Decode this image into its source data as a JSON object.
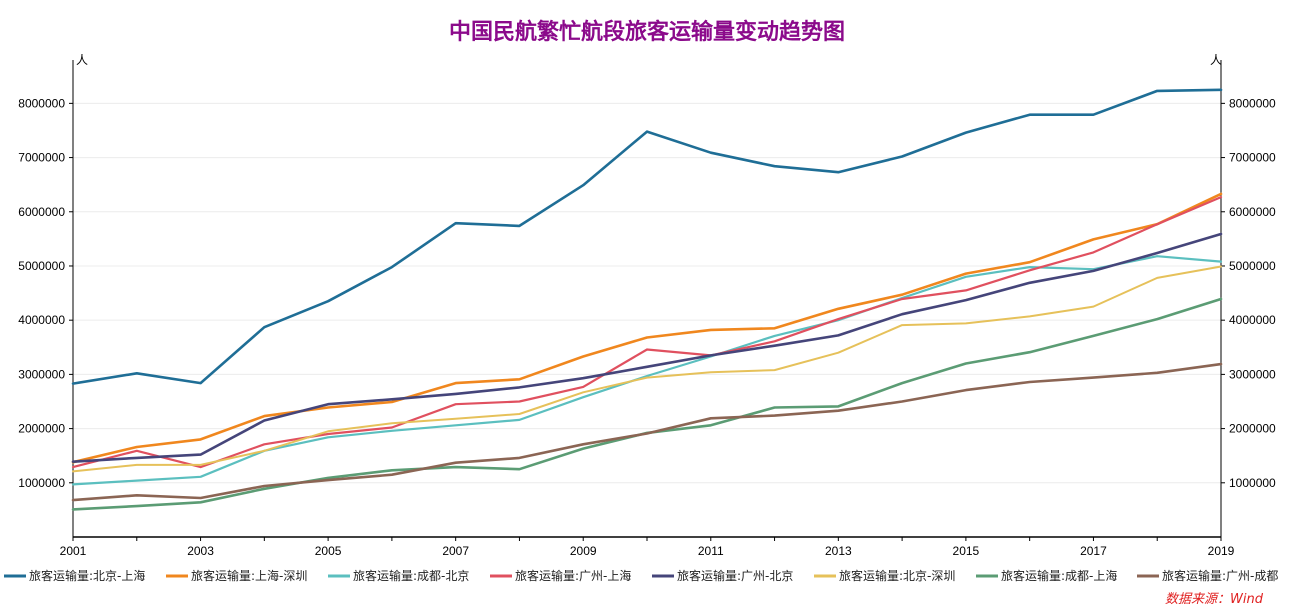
{
  "chart_data": {
    "type": "line",
    "title": "中国民航繁忙航段旅客运输量变动趋势图",
    "title_color": "#8b0a8b",
    "y_unit_left": "人",
    "y_unit_right": "人",
    "x": [
      2001,
      2002,
      2003,
      2004,
      2005,
      2006,
      2007,
      2008,
      2009,
      2010,
      2011,
      2012,
      2013,
      2014,
      2015,
      2016,
      2017,
      2018,
      2019
    ],
    "x_tick_labels": [
      "2001",
      "2003",
      "2005",
      "2007",
      "2009",
      "2011",
      "2013",
      "2015",
      "2017",
      "2019"
    ],
    "ylim": [
      0,
      8800000
    ],
    "y_ticks": [
      "1000000",
      "2000000",
      "3000000",
      "4000000",
      "5000000",
      "6000000",
      "7000000",
      "8000000"
    ],
    "grid": true,
    "legend_position": "bottom",
    "series": [
      {
        "name": "旅客运输量:北京-上海",
        "color": "#1f6e96",
        "width": 2.6,
        "values": [
          2830000,
          3020000,
          2840000,
          3870000,
          4350000,
          4980000,
          5790000,
          5740000,
          6490000,
          7480000,
          7090000,
          6840000,
          6730000,
          7020000,
          7460000,
          7790000,
          7790000,
          8230000,
          8250000
        ]
      },
      {
        "name": "旅客运输量:上海-深圳",
        "color": "#f0871e",
        "width": 2.6,
        "values": [
          1380000,
          1660000,
          1800000,
          2230000,
          2390000,
          2490000,
          2840000,
          2910000,
          3330000,
          3680000,
          3820000,
          3850000,
          4210000,
          4470000,
          4860000,
          5070000,
          5490000,
          5770000,
          6330000
        ]
      },
      {
        "name": "旅客运输量:成都-北京",
        "color": "#5bbfbf",
        "width": 2.2,
        "values": [
          970000,
          1040000,
          1110000,
          1590000,
          1840000,
          1960000,
          2060000,
          2160000,
          2580000,
          2970000,
          3330000,
          3710000,
          4000000,
          4410000,
          4800000,
          4980000,
          4940000,
          5180000,
          5080000
        ]
      },
      {
        "name": "旅客运输量:广州-上海",
        "color": "#e0505f",
        "width": 2.2,
        "values": [
          1290000,
          1590000,
          1290000,
          1710000,
          1900000,
          2020000,
          2450000,
          2500000,
          2770000,
          3460000,
          3350000,
          3610000,
          4020000,
          4390000,
          4550000,
          4920000,
          5250000,
          5770000,
          6270000
        ]
      },
      {
        "name": "旅客运输量:广州-北京",
        "color": "#45457a",
        "width": 2.6,
        "values": [
          1390000,
          1460000,
          1520000,
          2150000,
          2450000,
          2540000,
          2640000,
          2760000,
          2930000,
          3140000,
          3350000,
          3530000,
          3720000,
          4110000,
          4370000,
          4690000,
          4910000,
          5240000,
          5590000
        ]
      },
      {
        "name": "旅客运输量:北京-深圳",
        "color": "#e6c15a",
        "width": 2.0,
        "values": [
          1210000,
          1330000,
          1330000,
          1590000,
          1950000,
          2100000,
          2180000,
          2270000,
          2670000,
          2940000,
          3040000,
          3080000,
          3400000,
          3910000,
          3940000,
          4070000,
          4250000,
          4780000,
          4990000
        ]
      },
      {
        "name": "旅客运输量:成都-上海",
        "color": "#5b9c74",
        "width": 2.6,
        "values": [
          510000,
          570000,
          640000,
          890000,
          1090000,
          1230000,
          1290000,
          1250000,
          1630000,
          1920000,
          2060000,
          2390000,
          2410000,
          2840000,
          3200000,
          3410000,
          3710000,
          4020000,
          4390000
        ]
      },
      {
        "name": "旅客运输量:广州-成都",
        "color": "#8b6554",
        "width": 2.6,
        "values": [
          680000,
          770000,
          720000,
          940000,
          1050000,
          1150000,
          1370000,
          1460000,
          1710000,
          1910000,
          2190000,
          2240000,
          2330000,
          2500000,
          2710000,
          2860000,
          2940000,
          3030000,
          3190000
        ]
      }
    ],
    "source": "数据来源：Wind"
  }
}
